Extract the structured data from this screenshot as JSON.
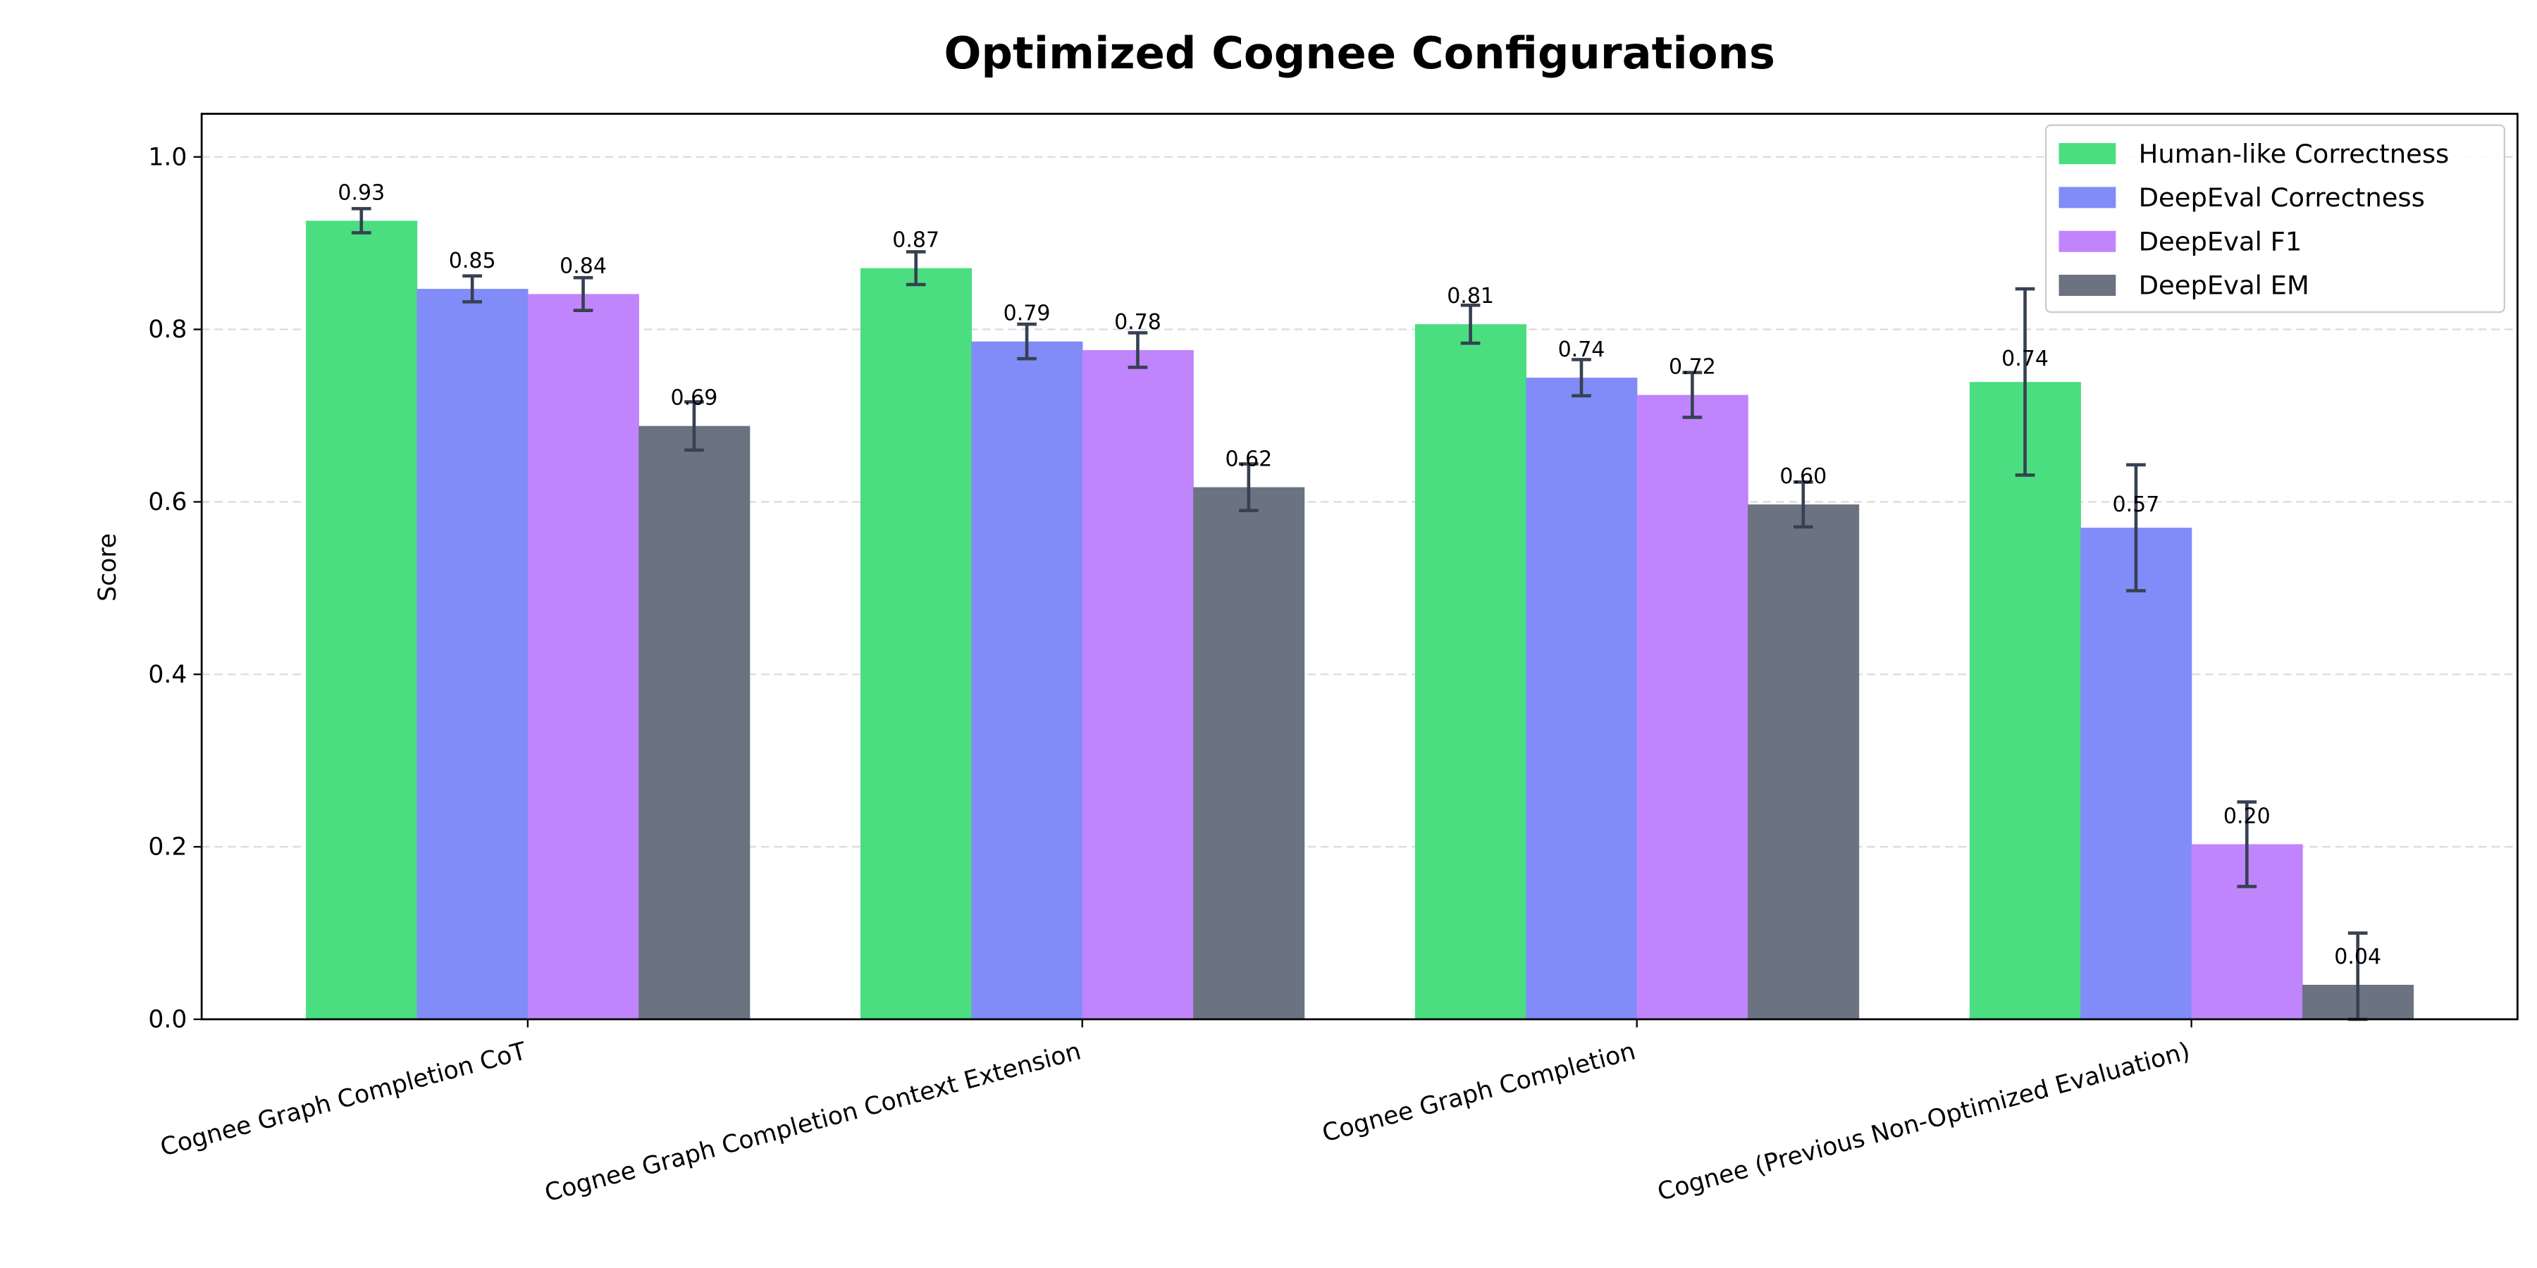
{
  "chart_data": {
    "type": "bar",
    "title": "Optimized Cognee Configurations",
    "xlabel": "",
    "ylabel": "Score",
    "ylim": [
      0,
      1.05
    ],
    "yticks": [
      "0.0",
      "0.2",
      "0.4",
      "0.6",
      "0.8",
      "1.0"
    ],
    "grid": "y-dashed",
    "legend_position": "top-right",
    "categories": [
      "Cognee Graph Completion CoT",
      "Cognee Graph Completion Context Extension",
      "Cognee Graph Completion",
      "Cognee (Previous Non-Optimized Evaluation)"
    ],
    "series": [
      {
        "name": "Human-like Correctness",
        "color": "#4ade80",
        "values": [
          0.926,
          0.871,
          0.806,
          0.739
        ],
        "errors": [
          0.014,
          0.019,
          0.022,
          0.108
        ],
        "labels": [
          "0.93",
          "0.87",
          "0.81",
          "0.74"
        ]
      },
      {
        "name": "DeepEval Correctness",
        "color": "#818cf8",
        "values": [
          0.847,
          0.786,
          0.744,
          0.57
        ],
        "errors": [
          0.015,
          0.02,
          0.021,
          0.073
        ],
        "labels": [
          "0.85",
          "0.79",
          "0.74",
          "0.57"
        ]
      },
      {
        "name": "DeepEval F1",
        "color": "#c084fc",
        "values": [
          0.841,
          0.776,
          0.724,
          0.203
        ],
        "errors": [
          0.019,
          0.02,
          0.026,
          0.049
        ],
        "labels": [
          "0.84",
          "0.78",
          "0.72",
          "0.20"
        ]
      },
      {
        "name": "DeepEval EM",
        "color": "#6b7280",
        "values": [
          0.688,
          0.617,
          0.597,
          0.04
        ],
        "errors": [
          0.028,
          0.027,
          0.026,
          0.06
        ],
        "labels": [
          "0.69",
          "0.62",
          "0.60",
          "0.04"
        ]
      }
    ],
    "errorbar_color": "#374151"
  }
}
